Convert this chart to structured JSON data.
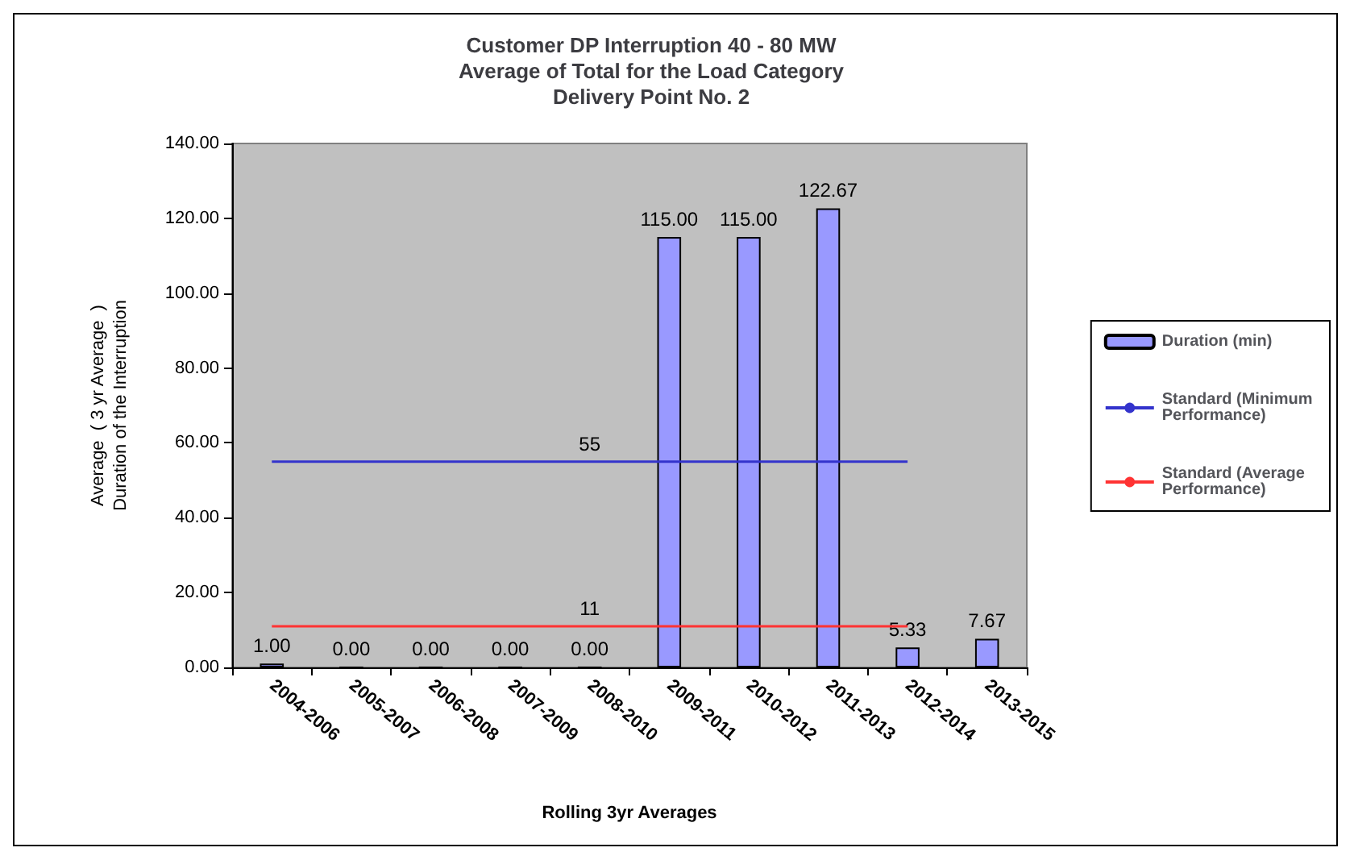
{
  "chart_data": {
    "type": "bar",
    "title": "Customer DP Interruption 40 - 80 MW\nAverage of Total for the Load Category\nDelivery Point No. 2",
    "xlabel": "Rolling 3yr Averages",
    "ylabel": "Average  ( 3 yr Average  )\nDuration of the Interruption",
    "categories": [
      "2004-2006",
      "2005-2007",
      "2006-2008",
      "2007-2009",
      "2008-2010",
      "2009-2011",
      "2010-2012",
      "2011-2013",
      "2012-2014",
      "2013-2015"
    ],
    "series": [
      {
        "name": "Duration (min)",
        "color": "#9999ff",
        "values": [
          1,
          0,
          0,
          0,
          0,
          115,
          115,
          122.67,
          5.33,
          7.67
        ],
        "value_labels": [
          "1.00",
          "0.00",
          "0.00",
          "0.00",
          "0.00",
          "115.00",
          "115.00",
          "122.67",
          "5.33",
          "7.67"
        ]
      },
      {
        "name": "Standard (Minimum Performance)",
        "type": "line",
        "color": "#3333cc",
        "values": [
          55,
          55,
          55,
          55,
          55,
          55,
          55,
          55,
          55,
          null
        ],
        "value_labels": [
          null,
          null,
          null,
          null,
          "55",
          null,
          null,
          null,
          null,
          null
        ]
      },
      {
        "name": "Standard (Average Performance)",
        "type": "line",
        "color": "#ff3333",
        "values": [
          11,
          11,
          11,
          11,
          11,
          11,
          11,
          11,
          11,
          null
        ],
        "value_labels": [
          null,
          null,
          null,
          null,
          "11",
          null,
          null,
          null,
          null,
          null
        ]
      }
    ],
    "ylim": [
      0,
      140
    ],
    "yticks": [
      {
        "value": 0,
        "label": "0.00"
      },
      {
        "value": 20,
        "label": "20.00"
      },
      {
        "value": 40,
        "label": "40.00"
      },
      {
        "value": 60,
        "label": "60.00"
      },
      {
        "value": 80,
        "label": "80.00"
      },
      {
        "value": 100,
        "label": "100.00"
      },
      {
        "value": 120,
        "label": "120.00"
      },
      {
        "value": 140,
        "label": "140.00"
      }
    ],
    "grid": false,
    "legend": "right",
    "marker": "none"
  }
}
